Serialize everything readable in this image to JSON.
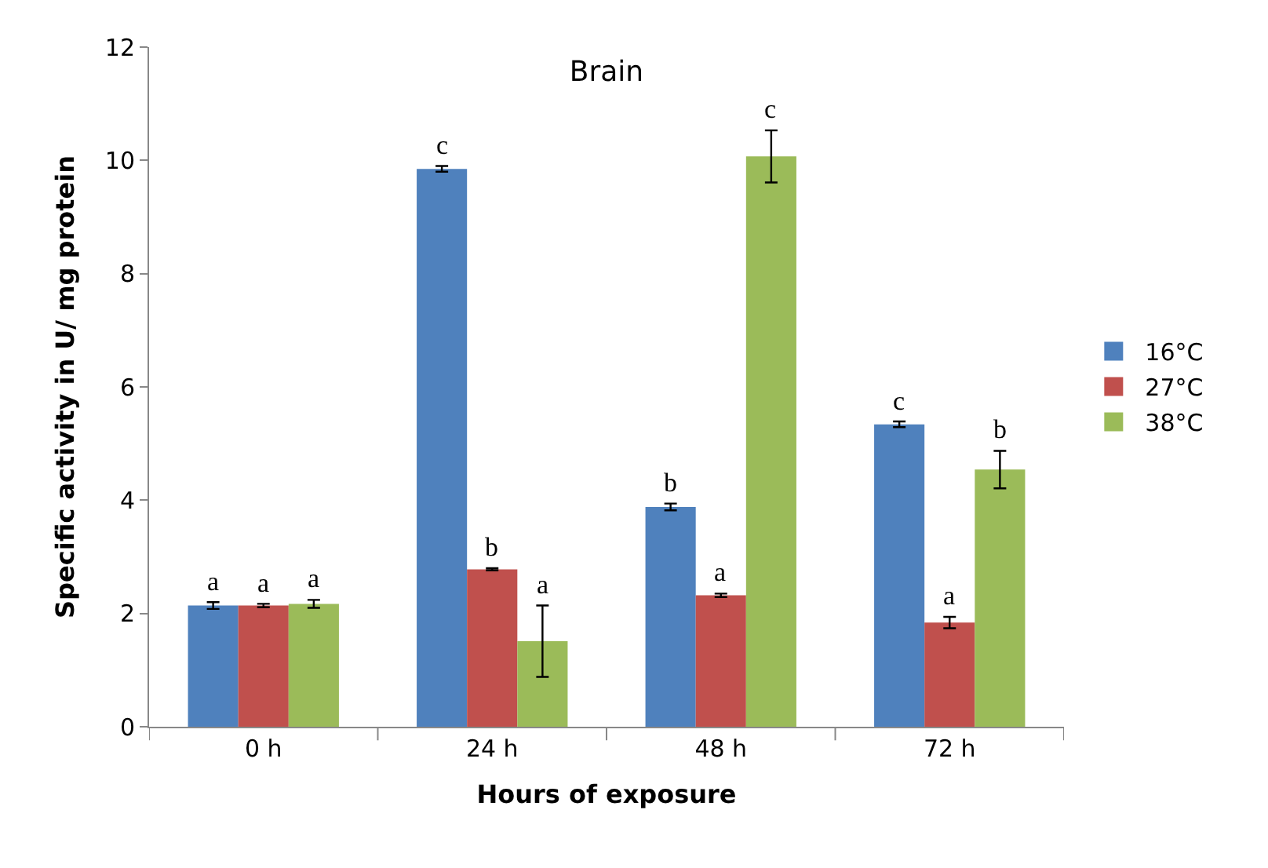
{
  "chart_data": {
    "type": "bar",
    "title": "Brain",
    "xlabel": "Hours of exposure",
    "ylabel": "Specific activity in U/ mg protein",
    "categories": [
      "0 h",
      "24 h",
      "48 h",
      "72 h"
    ],
    "series": [
      {
        "name": "16°C",
        "color": "#4f81bd",
        "values": [
          2.14,
          9.85,
          3.88,
          5.34
        ],
        "errors": [
          0.06,
          0.05,
          0.06,
          0.05
        ],
        "value_labels": [
          "a",
          "c",
          "b",
          "c"
        ]
      },
      {
        "name": "27°C",
        "color": "#c0504d",
        "values": [
          2.14,
          2.78,
          2.32,
          1.84
        ],
        "errors": [
          0.03,
          0.02,
          0.03,
          0.1
        ],
        "value_labels": [
          "a",
          "b",
          "a",
          "a"
        ]
      },
      {
        "name": "38°C",
        "color": "#9bbb59",
        "values": [
          2.17,
          1.51,
          10.07,
          4.54
        ],
        "errors": [
          0.07,
          0.63,
          0.46,
          0.33
        ],
        "value_labels": [
          "a",
          "a",
          "c",
          "b"
        ]
      }
    ],
    "ylim": [
      0,
      12
    ],
    "yticks": [
      0,
      2,
      4,
      6,
      8,
      10,
      12
    ],
    "legend": "right"
  }
}
